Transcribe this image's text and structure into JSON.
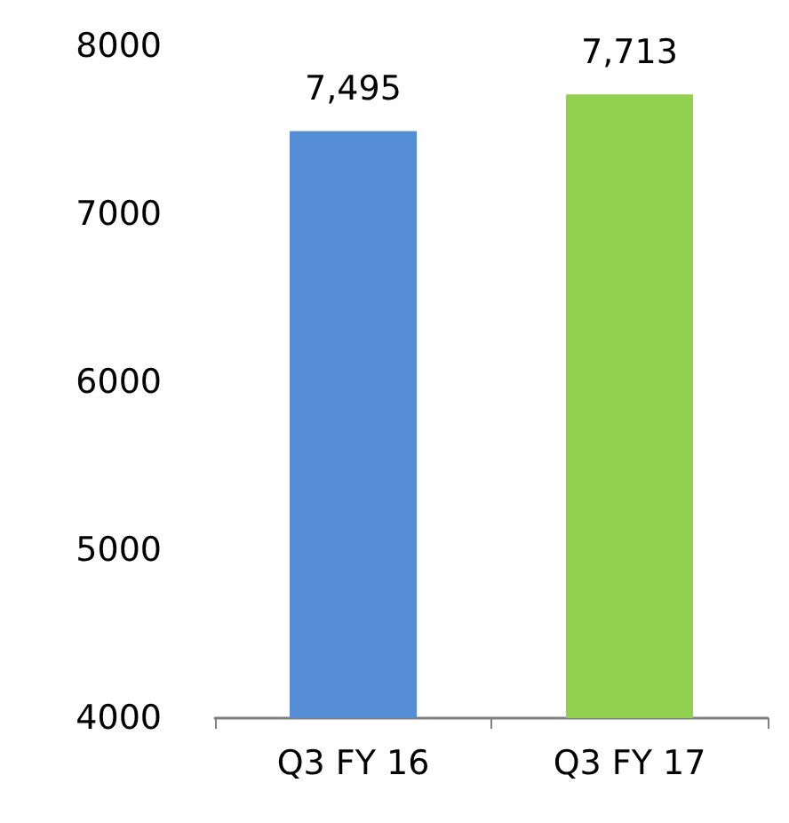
{
  "chart_data": {
    "type": "bar",
    "categories": [
      "Q3 FY 16",
      "Q3 FY 17"
    ],
    "values": [
      7495,
      7713
    ],
    "colors": [
      "#558ed5",
      "#92d050"
    ],
    "value_labels": [
      "7,495",
      "7,713"
    ],
    "ylim": [
      4000,
      8000
    ],
    "yticks": [
      4000,
      5000,
      6000,
      7000,
      8000
    ],
    "grid": false
  }
}
